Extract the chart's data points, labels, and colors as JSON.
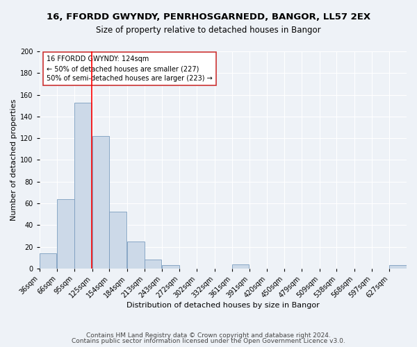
{
  "title": "16, FFORDD GWYNDY, PENRHOSGARNEDD, BANGOR, LL57 2EX",
  "subtitle": "Size of property relative to detached houses in Bangor",
  "xlabel": "Distribution of detached houses by size in Bangor",
  "ylabel": "Number of detached properties",
  "bar_color": "#ccd9e8",
  "bar_edge_color": "#7a9dbf",
  "bin_labels": [
    "36sqm",
    "66sqm",
    "95sqm",
    "125sqm",
    "154sqm",
    "184sqm",
    "213sqm",
    "243sqm",
    "272sqm",
    "302sqm",
    "332sqm",
    "361sqm",
    "391sqm",
    "420sqm",
    "450sqm",
    "479sqm",
    "509sqm",
    "538sqm",
    "568sqm",
    "597sqm",
    "627sqm"
  ],
  "bar_values": [
    14,
    64,
    153,
    122,
    52,
    25,
    8,
    3,
    0,
    0,
    0,
    4,
    0,
    0,
    0,
    0,
    0,
    0,
    0,
    0,
    3
  ],
  "ylim": [
    0,
    200
  ],
  "yticks": [
    0,
    20,
    40,
    60,
    80,
    100,
    120,
    140,
    160,
    180,
    200
  ],
  "red_line_x": 124,
  "bin_width": 29,
  "annotation_line1": "16 FFORDD GWYNDY: 124sqm",
  "annotation_line2": "← 50% of detached houses are smaller (227)",
  "annotation_line3": "50% of semi-detached houses are larger (223) →",
  "footer_line1": "Contains HM Land Registry data © Crown copyright and database right 2024.",
  "footer_line2": "Contains public sector information licensed under the Open Government Licence v3.0.",
  "background_color": "#eef2f7",
  "grid_color": "#ffffff",
  "title_fontsize": 9.5,
  "subtitle_fontsize": 8.5,
  "axis_label_fontsize": 8,
  "tick_fontsize": 7,
  "footer_fontsize": 6.5
}
